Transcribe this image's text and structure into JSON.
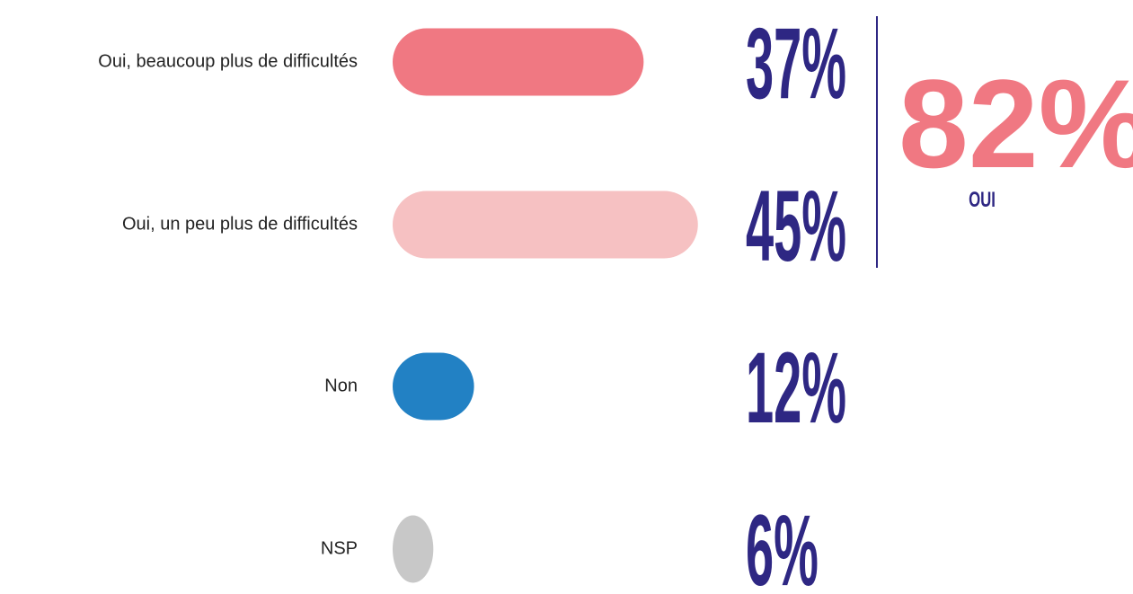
{
  "chart_data": {
    "type": "bar",
    "categories": [
      "Oui, beaucoup plus de difficultés",
      "Oui, un peu plus de difficultés",
      "Non",
      "NSP"
    ],
    "values": [
      37,
      45,
      12,
      6
    ],
    "value_labels": [
      "37%",
      "45%",
      "12%",
      "6%"
    ],
    "colors": [
      "#f07882",
      "#f6c1c2",
      "#2281c4",
      "#c8c8c8"
    ],
    "highlight": "82%",
    "highlight_label": "OUI"
  }
}
